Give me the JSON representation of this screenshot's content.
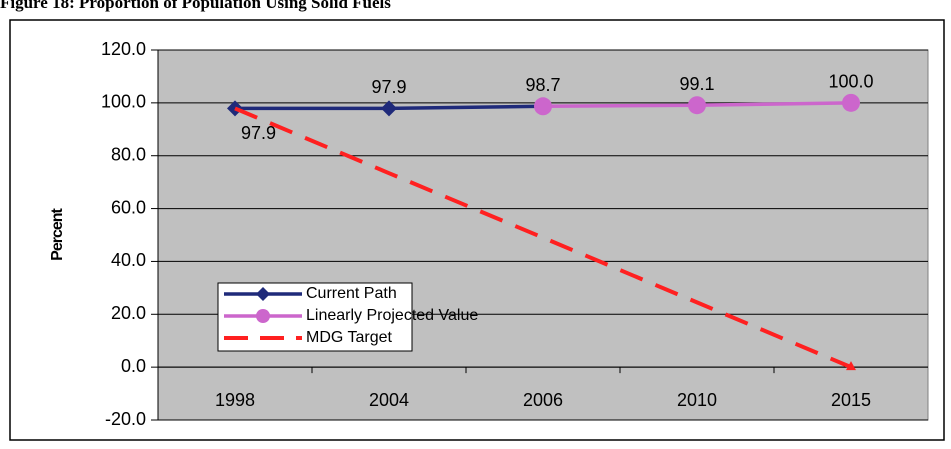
{
  "chart_data": {
    "type": "line",
    "title": "Figure 18: Proportion of Population Using Solid Fuels",
    "y_label": "Percent",
    "categories": [
      "1998",
      "2004",
      "2006",
      "2010",
      "2015"
    ],
    "series": [
      {
        "name": "Current Path",
        "color": "#1f2a7a",
        "marker": "diamond",
        "values": [
          97.9,
          97.9,
          98.7,
          null,
          null
        ],
        "value_labels": [
          "97.9",
          "97.9",
          "98.7",
          null,
          null
        ]
      },
      {
        "name": "Linearly Projected Value",
        "color": "#cc66cc",
        "marker": "circle",
        "values": [
          null,
          null,
          98.7,
          99.1,
          100.0
        ],
        "value_labels": [
          null,
          null,
          null,
          "99.1",
          "100.0"
        ]
      },
      {
        "name": "MDG Target",
        "color": "#ff2020",
        "dashed": true,
        "marker": "end-triangle",
        "values": [
          97.9,
          73.4,
          49.0,
          24.5,
          0.0
        ]
      }
    ],
    "ylim": [
      -20,
      120
    ],
    "yticks": [
      {
        "value": -20,
        "label": "-20.0"
      },
      {
        "value": 0,
        "label": "0.0"
      },
      {
        "value": 20,
        "label": "20.0"
      },
      {
        "value": 40,
        "label": "40.0"
      },
      {
        "value": 60,
        "label": "60.0"
      },
      {
        "value": 80,
        "label": "80.0"
      },
      {
        "value": 100,
        "label": "100.0"
      },
      {
        "value": 120,
        "label": "120.0"
      }
    ],
    "grid": true,
    "background": "#c0c0c0",
    "legend": "lower left"
  }
}
